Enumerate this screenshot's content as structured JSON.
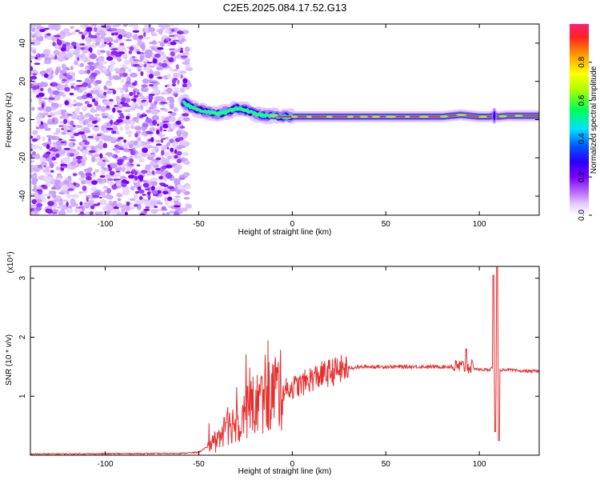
{
  "title": "C2E5.2025.084.17.52.G13",
  "chart_data": [
    {
      "type": "heatmap",
      "xlabel": "Height of straight line (km)",
      "ylabel": "Frequency (Hz)",
      "xlim": [
        -140,
        132
      ],
      "ylim": [
        -50,
        50
      ],
      "xticks": [
        -100,
        -50,
        0,
        50,
        100
      ],
      "yticks": [
        -40,
        -20,
        0,
        20,
        40
      ],
      "noise_region_x": [
        -140,
        -55
      ],
      "ridge": {
        "x": [
          -58,
          -55,
          -50,
          -45,
          -40,
          -35,
          -30,
          -25,
          -20,
          -15,
          -10,
          -5,
          0,
          10,
          20,
          40,
          60,
          80,
          85,
          90,
          95,
          100,
          105,
          108,
          110,
          115,
          120,
          132
        ],
        "freq": [
          9,
          7,
          5,
          4,
          3,
          4,
          6,
          5,
          3,
          2,
          2,
          1.5,
          1.5,
          1.5,
          1.5,
          1.5,
          1.5,
          1.5,
          2,
          2.5,
          2,
          1.5,
          1.5,
          2,
          1.5,
          2,
          2,
          2
        ]
      },
      "colorbar": {
        "label": "Normalized spectral amplitude",
        "range": [
          0,
          1
        ],
        "ticks": [
          0.0,
          0.2,
          0.4,
          0.6,
          0.8
        ]
      }
    },
    {
      "type": "line",
      "xlabel": "Height of straight line (km)",
      "ylabel": "SNR (10 * v/v)",
      "scale_label": "(x10⁴)",
      "xlim": [
        -140,
        132
      ],
      "ylim": [
        0,
        3.2
      ],
      "xticks": [
        -100,
        -50,
        0,
        50,
        100
      ],
      "yticks": [
        1,
        2,
        3
      ],
      "color": "#e53030",
      "envelope": {
        "x": [
          -140,
          -60,
          -50,
          -45,
          -40,
          -35,
          -30,
          -25,
          -20,
          -15,
          -10,
          -5,
          0,
          5,
          10,
          20,
          30,
          40,
          60,
          80,
          90,
          95,
          100,
          105,
          108,
          110,
          112,
          115,
          120,
          132
        ],
        "y": [
          0.02,
          0.03,
          0.05,
          0.15,
          0.3,
          0.45,
          0.6,
          0.75,
          0.85,
          0.95,
          1.05,
          1.1,
          1.15,
          1.2,
          1.3,
          1.4,
          1.48,
          1.5,
          1.5,
          1.5,
          1.5,
          1.5,
          1.45,
          1.45,
          1.5,
          1.45,
          1.45,
          1.45,
          1.43,
          1.42
        ]
      },
      "spikes": [
        {
          "x": 93,
          "y": 1.8
        },
        {
          "x": 107.5,
          "y": 3.05
        },
        {
          "x": 108.5,
          "y": 0.4
        },
        {
          "x": 109.5,
          "y": 3.2
        },
        {
          "x": 110.5,
          "y": 0.25
        }
      ]
    }
  ]
}
